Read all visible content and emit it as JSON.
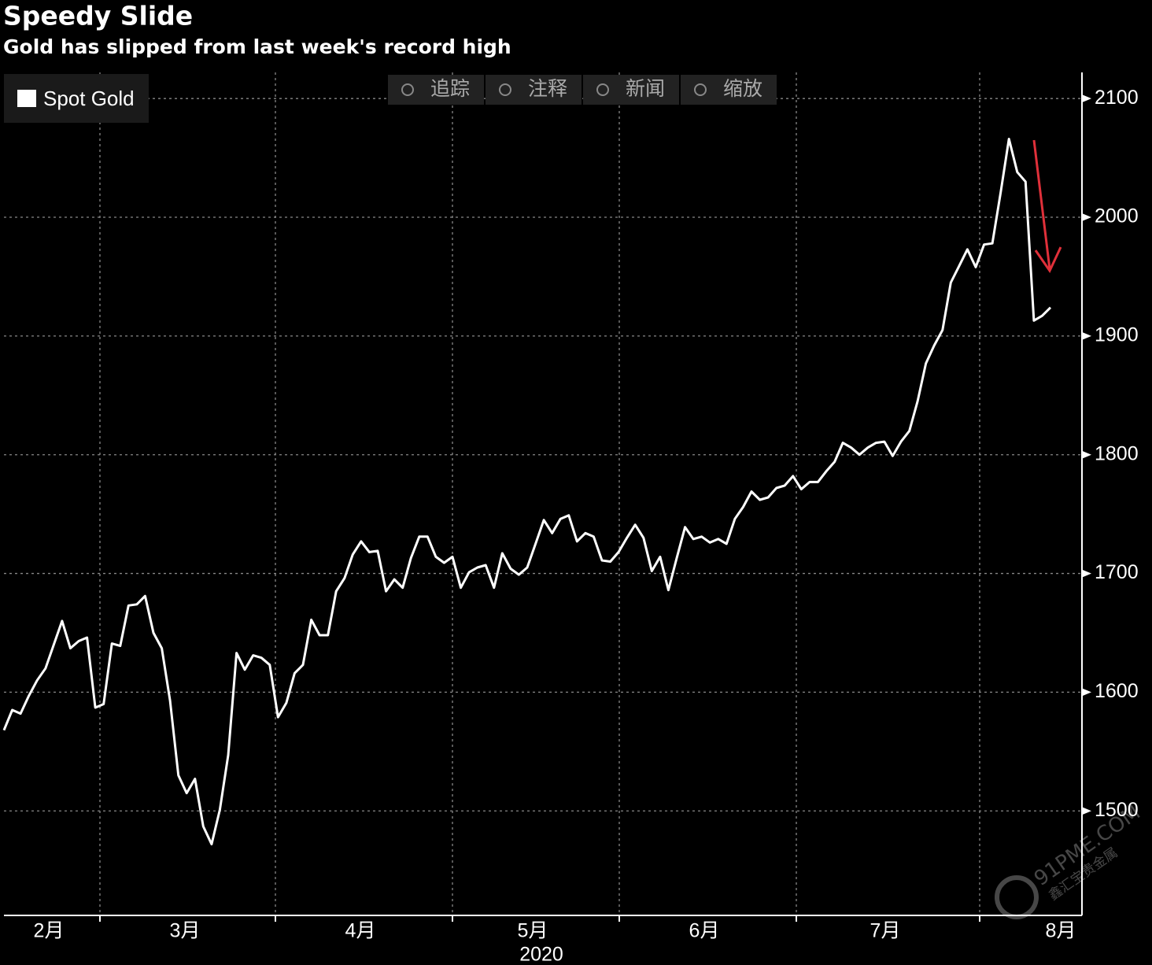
{
  "chart_data": {
    "type": "line",
    "title": "Speedy Slide",
    "subtitle": "Gold has slipped from last week's record high",
    "x_tick_labels": [
      "2月",
      "3月",
      "4月",
      "5月",
      "6月",
      "7月",
      "8月"
    ],
    "x_axis_label": "2020",
    "series": [
      {
        "name": "Spot Gold",
        "color": "#ffffff",
        "values": [
          1568,
          1585,
          1582,
          1597,
          1610,
          1620,
          1640,
          1660,
          1637,
          1643,
          1646,
          1587,
          1590,
          1641,
          1639,
          1673,
          1674,
          1681,
          1650,
          1637,
          1593,
          1530,
          1515,
          1527,
          1487,
          1472,
          1501,
          1547,
          1633,
          1619,
          1631,
          1629,
          1623,
          1579,
          1591,
          1616,
          1623,
          1661,
          1648,
          1648,
          1685,
          1696,
          1716,
          1727,
          1718,
          1719,
          1685,
          1695,
          1688,
          1713,
          1731,
          1731,
          1714,
          1709,
          1714,
          1688,
          1701,
          1705,
          1707,
          1688,
          1717,
          1704,
          1699,
          1705,
          1725,
          1745,
          1734,
          1746,
          1749,
          1727,
          1734,
          1731,
          1711,
          1710,
          1718,
          1730,
          1741,
          1730,
          1702,
          1714,
          1686,
          1713,
          1739,
          1729,
          1731,
          1726,
          1729,
          1725,
          1746,
          1756,
          1769,
          1762,
          1764,
          1772,
          1774,
          1782,
          1771,
          1777,
          1777,
          1786,
          1794,
          1810,
          1806,
          1800,
          1806,
          1810,
          1811,
          1799,
          1811,
          1820,
          1845,
          1877,
          1892,
          1905,
          1945,
          1959,
          1973,
          1958,
          1977,
          1978,
          2021,
          2066,
          2038,
          2030,
          1913,
          1917,
          1924
        ]
      }
    ],
    "ylim": [
      1412,
      2122
    ],
    "yticks": [
      1500,
      1600,
      1700,
      1800,
      1900,
      2000,
      2100
    ],
    "grid": true,
    "legend": "upper left"
  },
  "toolbar": [
    "追踪",
    "注释",
    "新闻",
    "缩放"
  ],
  "watermark": {
    "domain": "91PME.COM",
    "name": "鑫汇宝贵金属"
  }
}
